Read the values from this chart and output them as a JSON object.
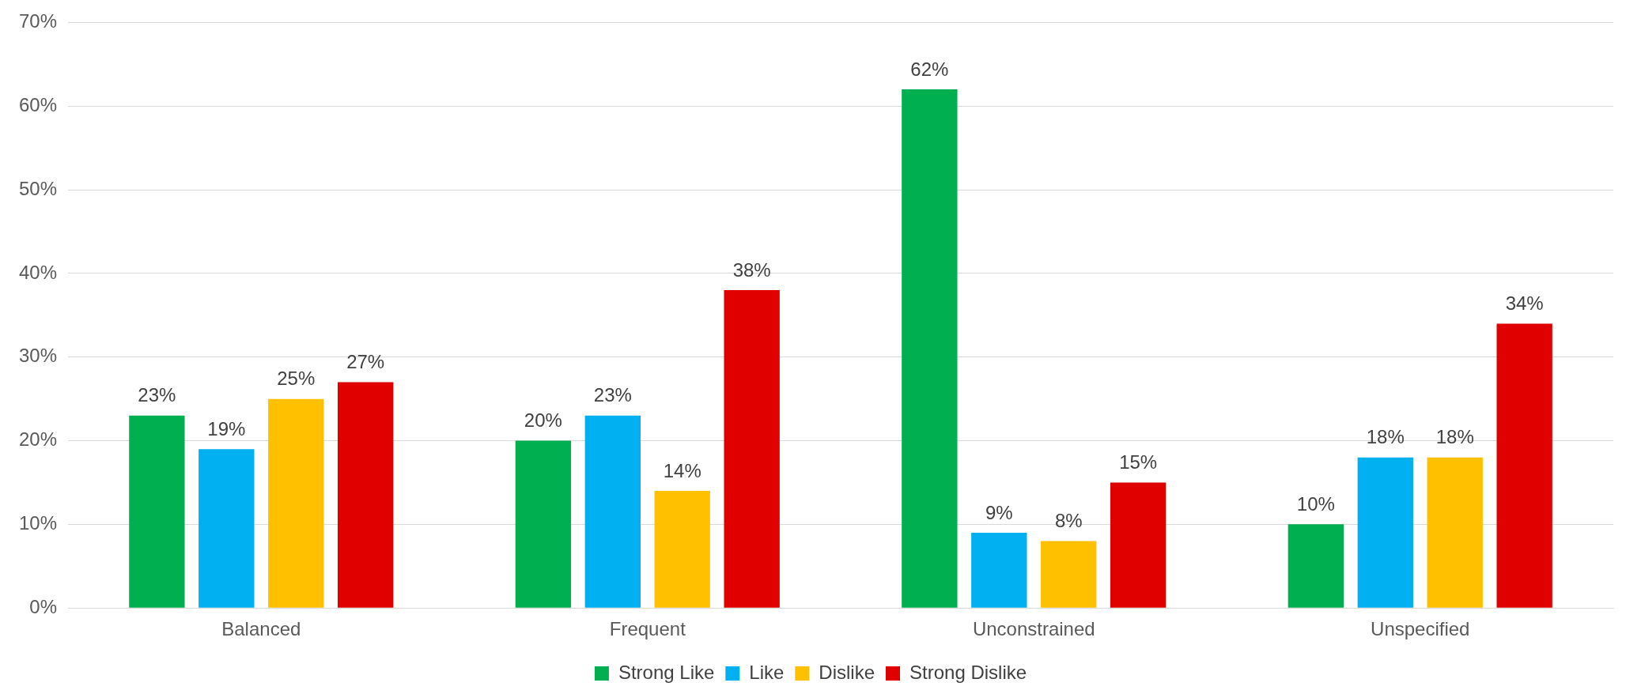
{
  "chart_data": {
    "type": "bar",
    "categories": [
      "Balanced",
      "Frequent",
      "Unconstrained",
      "Unspecified"
    ],
    "series": [
      {
        "name": "Strong Like",
        "color": "#00b050",
        "values": [
          23,
          20,
          62,
          10
        ],
        "value_labels": [
          "23%",
          "20%",
          "62%",
          "10%"
        ]
      },
      {
        "name": "Like",
        "color": "#00b0f0",
        "values": [
          19,
          23,
          9,
          18
        ],
        "value_labels": [
          "19%",
          "23%",
          "9%",
          "18%"
        ]
      },
      {
        "name": "Dislike",
        "color": "#ffc000",
        "values": [
          25,
          14,
          8,
          18
        ],
        "value_labels": [
          "25%",
          "14%",
          "8%",
          "18%"
        ]
      },
      {
        "name": "Strong Dislike",
        "color": "#e00000",
        "values": [
          27,
          38,
          15,
          34
        ],
        "value_labels": [
          "27%",
          "38%",
          "15%",
          "34%"
        ]
      }
    ],
    "ylim": [
      0,
      70
    ],
    "yticks": [
      {
        "value": 0,
        "label": "0%"
      },
      {
        "value": 10,
        "label": "10%"
      },
      {
        "value": 20,
        "label": "20%"
      },
      {
        "value": 30,
        "label": "30%"
      },
      {
        "value": 40,
        "label": "40%"
      },
      {
        "value": 50,
        "label": "50%"
      },
      {
        "value": 60,
        "label": "60%"
      },
      {
        "value": 70,
        "label": "70%"
      }
    ],
    "grid": "y",
    "legend": "bottom"
  }
}
